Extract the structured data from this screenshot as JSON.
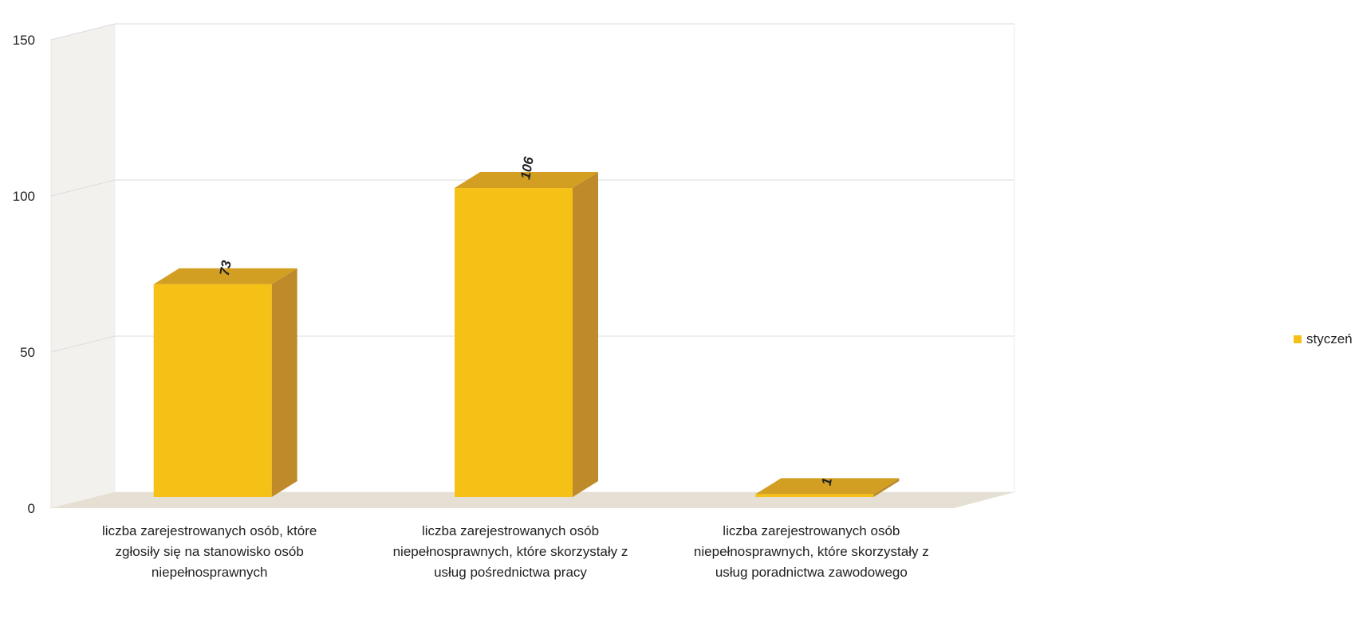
{
  "chart_data": {
    "type": "bar",
    "style": "3d-column",
    "categories": [
      [
        "liczba zarejestrowanych osób, które",
        "zgłosiły się na stanowisko osób",
        "niepełnosprawnych"
      ],
      [
        "liczba zarejestrowanych osób",
        "niepełnosprawnych, które skorzystały z",
        "usług pośrednictwa pracy"
      ],
      [
        "liczba zarejestrowanych osób",
        "niepełnosprawnych, które skorzystały z",
        "usług poradnictwa zawodowego"
      ]
    ],
    "series": [
      {
        "name": "styczeń",
        "values": [
          73,
          106,
          1
        ]
      }
    ],
    "ylim": [
      0,
      150
    ],
    "yticks": [
      "0",
      "50",
      "100",
      "150"
    ],
    "grid": true,
    "legend_position": "right",
    "data_labels": [
      "73",
      "106",
      "1"
    ],
    "colors": {
      "bar_front": "#F5C116",
      "bar_top": "#D39F22",
      "bar_side": "#BE8A2A",
      "floor": "#E6DFD3",
      "back_wall": "#FFFFFF",
      "side_wall": "#F3F1ED",
      "grid": "#DCDCDC"
    }
  },
  "legend": {
    "label": "styczeń"
  }
}
